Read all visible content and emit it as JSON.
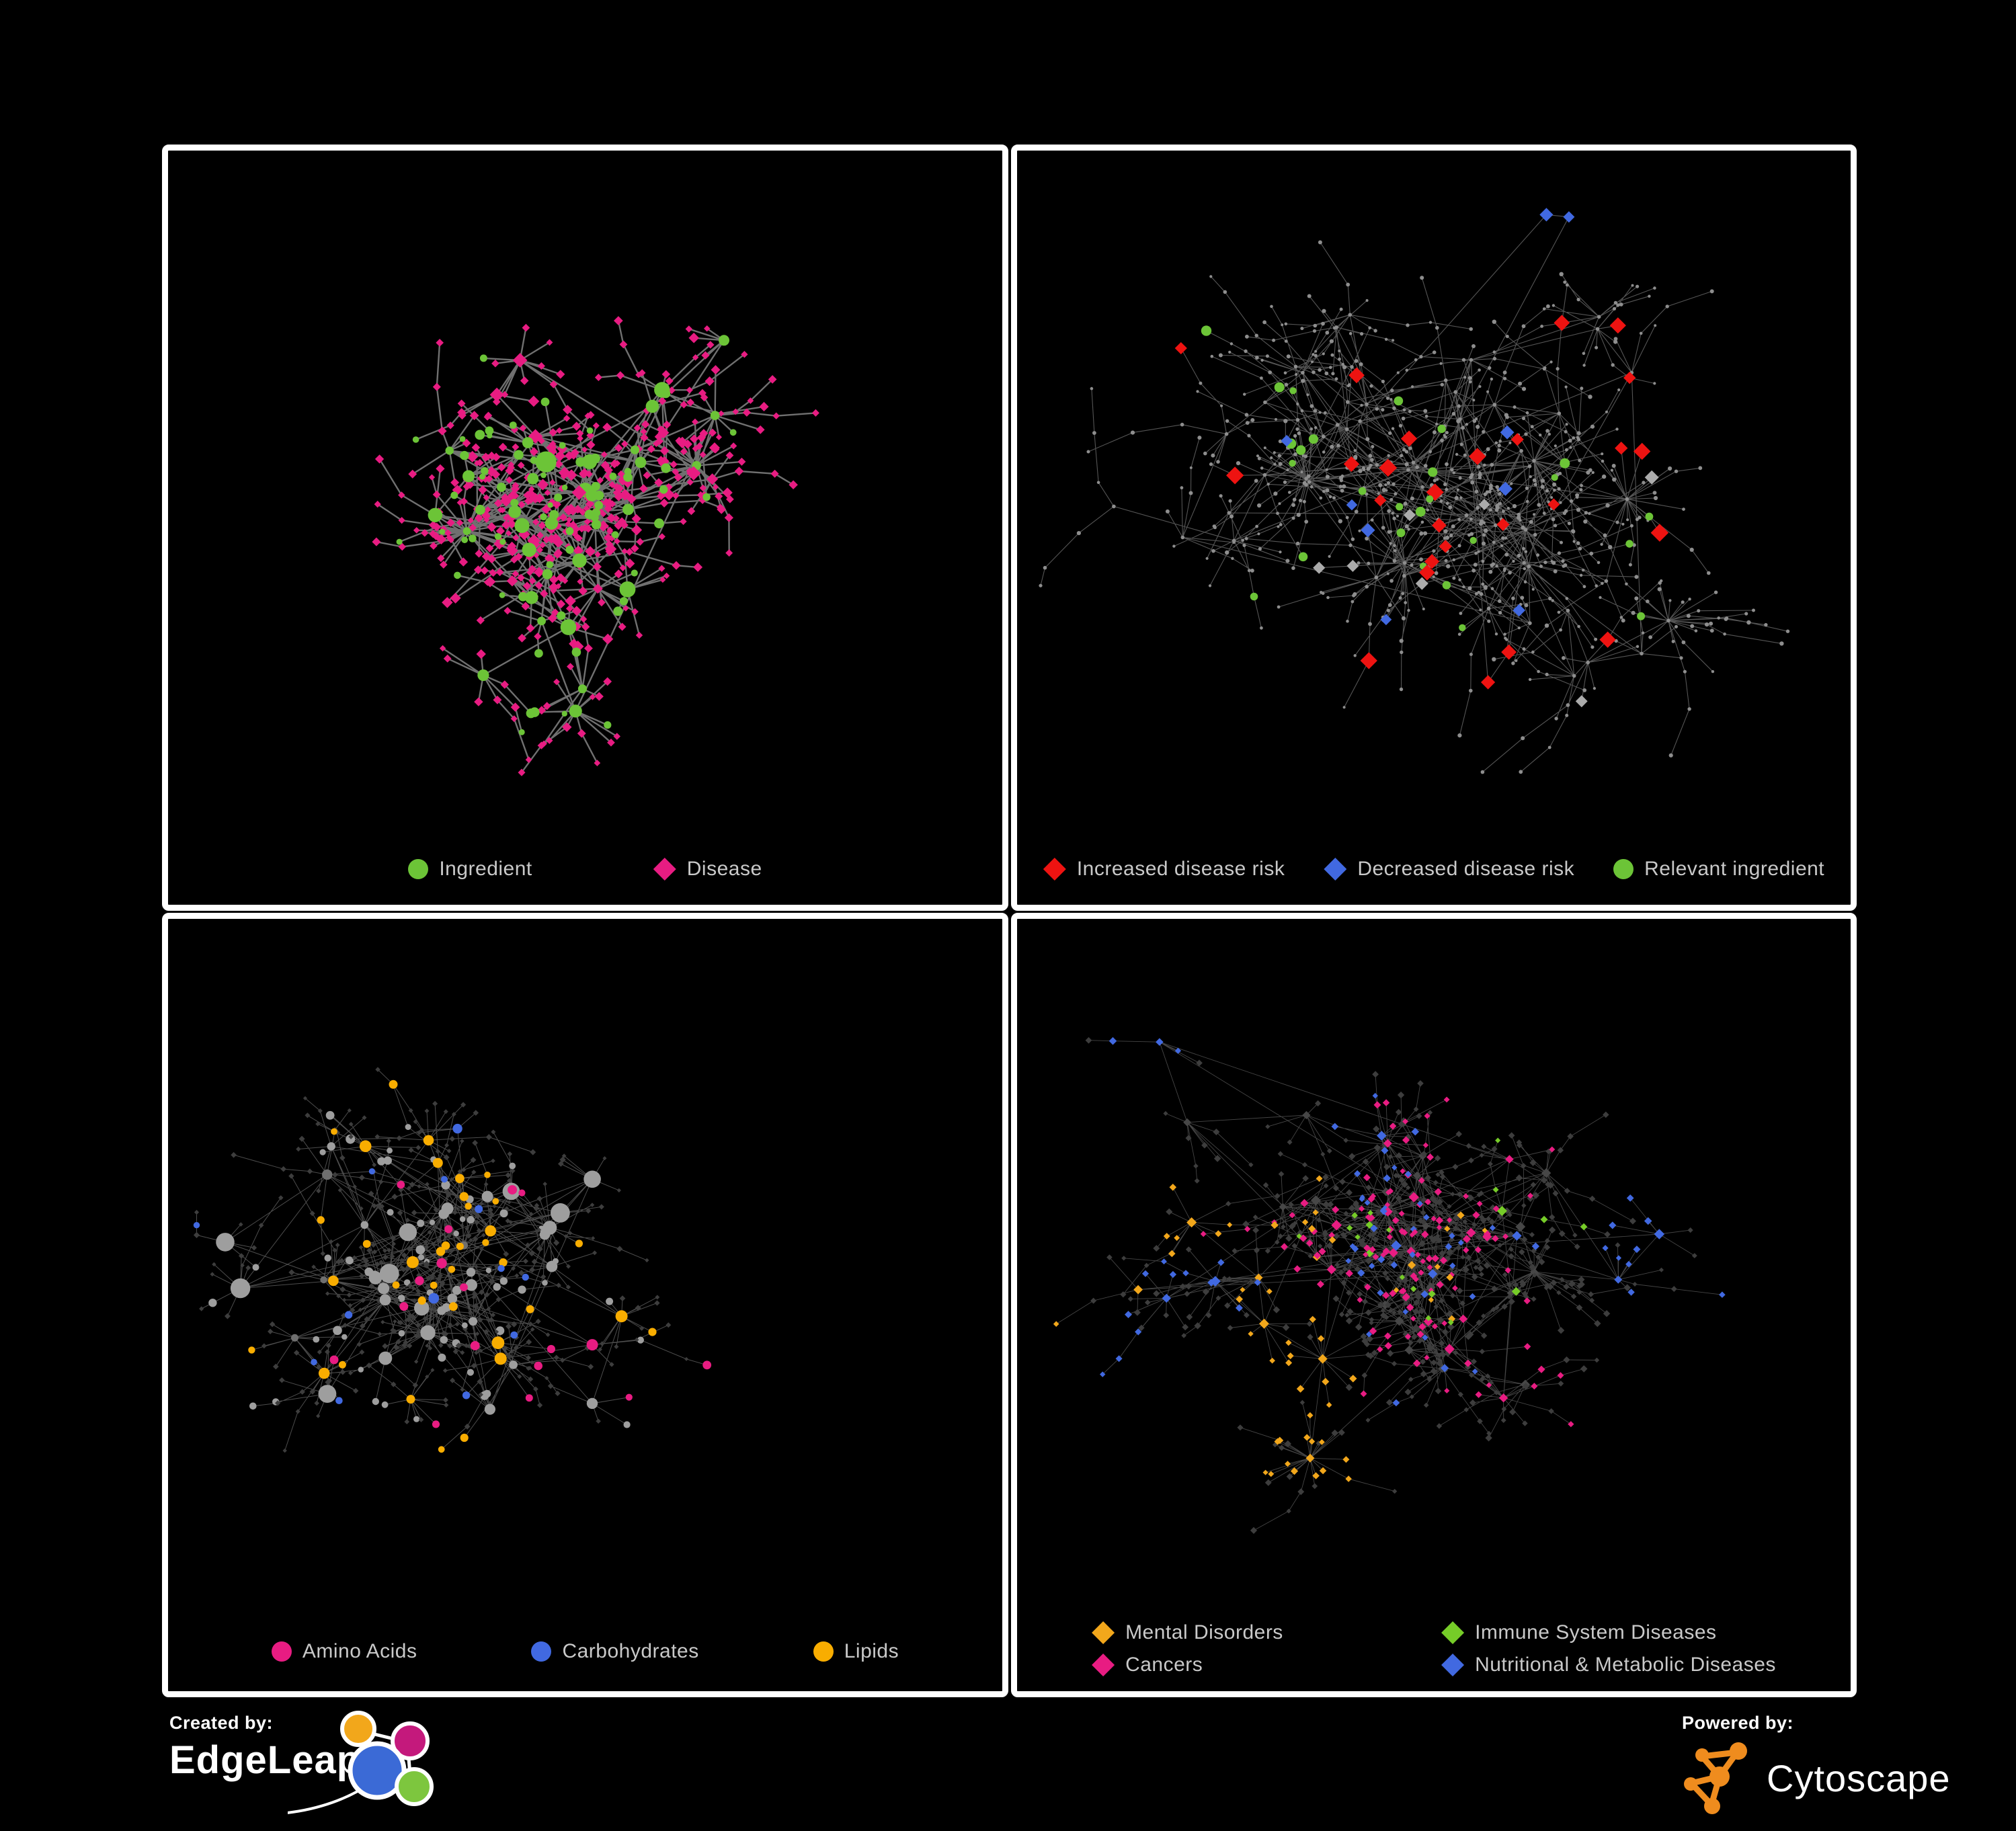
{
  "figure": {
    "background": "#000000",
    "panel_border_color": "#ffffff",
    "legend_text_color": "#c9c9c9"
  },
  "colors": {
    "green": "#6cc437",
    "pink": "#e81c82",
    "red": "#ee1311",
    "blue": "#4169e1",
    "lipid_orange": "#f9ad00",
    "mental_orange": "#f2a71b",
    "immune_green": "#76cc28",
    "gray_light": "#9e9e9e",
    "gray_diamond": "#ababab",
    "dark_diamond": "#3d3d3d",
    "tiny_dot": "#8e8e8e",
    "edge_thick": "#767676",
    "edge_thin": "#9a9a9a"
  },
  "panels": [
    {
      "id": "ingredient-disease",
      "legend": {
        "rows": [
          [
            {
              "shape": "circle",
              "color": "#6cc437",
              "label": "Ingredient"
            },
            {
              "shape": "diamond",
              "color": "#e81c82",
              "label": "Disease"
            }
          ]
        ]
      }
    },
    {
      "id": "disease-risk",
      "legend": {
        "rows": [
          [
            {
              "shape": "diamond",
              "color": "#ee1311",
              "label": "Increased disease risk"
            },
            {
              "shape": "diamond",
              "color": "#4169e1",
              "label": "Decreased disease risk"
            },
            {
              "shape": "circle",
              "color": "#6cc437",
              "label": "Relevant ingredient"
            }
          ]
        ]
      }
    },
    {
      "id": "nutrients",
      "legend": {
        "rows": [
          [
            {
              "shape": "circle",
              "color": "#e81c82",
              "label": "Amino Acids"
            },
            {
              "shape": "circle",
              "color": "#4169e1",
              "label": "Carbohydrates"
            },
            {
              "shape": "circle",
              "color": "#f9ad00",
              "label": "Lipids"
            }
          ]
        ]
      }
    },
    {
      "id": "disease-categories",
      "legend": {
        "rows": [
          [
            {
              "shape": "diamond",
              "color": "#f2a71b",
              "label": "Mental Disorders"
            },
            {
              "shape": "diamond",
              "color": "#76cc28",
              "label": "Immune System Diseases"
            }
          ],
          [
            {
              "shape": "diamond",
              "color": "#e81c82",
              "label": "Cancers"
            },
            {
              "shape": "diamond",
              "color": "#4169e1",
              "label": "Nutritional & Metabolic Diseases"
            }
          ]
        ]
      }
    }
  ],
  "footer": {
    "created_by": "Created by:",
    "brand_left": "EdgeLeap",
    "powered_by": "Powered by:",
    "brand_right": "Cytoscape"
  }
}
